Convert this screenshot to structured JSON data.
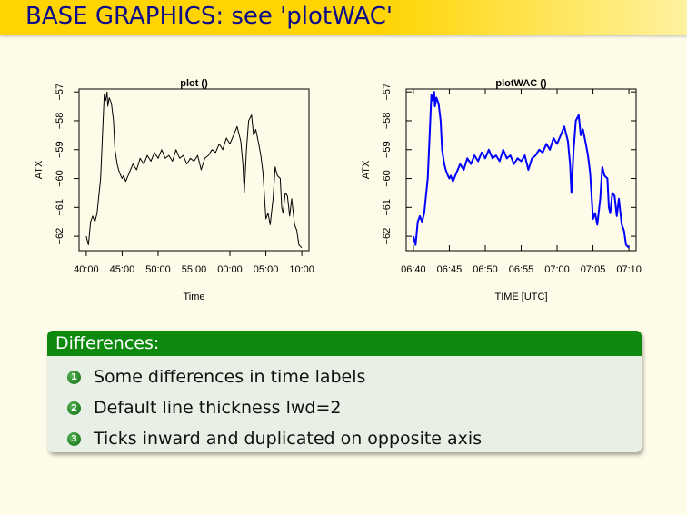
{
  "slide": {
    "title": "BASE GRAPHICS: see 'plotWAC'",
    "colors": {
      "title_bar": "#ffd400",
      "title_text": "#0a0a8a",
      "block_header": "#0d8a0d",
      "block_body": "#e8f0e6"
    }
  },
  "chart_data": [
    {
      "type": "line",
      "title": "plot ()",
      "xlabel": "Time",
      "ylabel": "ATX",
      "xtick_labels": [
        "40:00",
        "45:00",
        "50:00",
        "55:00",
        "00:00",
        "05:00",
        "10:00"
      ],
      "xlim": [
        -1,
        31
      ],
      "ylim": [
        -62.5,
        -56.9
      ],
      "yticks": [
        -57,
        -58,
        -59,
        -60,
        -61,
        -62
      ],
      "line_color": "#000000",
      "line_width": 1,
      "ticks": "outward",
      "series": [
        {
          "x": [
            0,
            0.3,
            0.6,
            0.9,
            1.2,
            1.5,
            2.0,
            2.5,
            2.7,
            2.9,
            3.0,
            3.2,
            3.5,
            3.8,
            4.0,
            4.3,
            4.5,
            4.8,
            5.0,
            5.2,
            5.5,
            6.0,
            6.5,
            7.0,
            7.5,
            8.0,
            8.5,
            9.0,
            9.5,
            10.0,
            10.5,
            11.0,
            11.5,
            12.0,
            12.5,
            13.0,
            13.5,
            14.0,
            14.5,
            15.0,
            15.5,
            16.0,
            16.5,
            17.0,
            17.5,
            18.0,
            18.5,
            19.0,
            19.5,
            20.0,
            20.5,
            21.0,
            21.5,
            21.8,
            22.0,
            22.3,
            22.6,
            23.0,
            23.3,
            23.6,
            24.0,
            24.3,
            24.6,
            25.0,
            25.3,
            25.6,
            26.0,
            26.3,
            26.6,
            27.0,
            27.2,
            27.4,
            27.7,
            28.0,
            28.3,
            28.6,
            29.0,
            29.3,
            29.6,
            30.0
          ],
          "y": [
            -62.0,
            -62.3,
            -61.5,
            -61.3,
            -61.5,
            -61.2,
            -60.0,
            -57.1,
            -57.3,
            -57.0,
            -57.5,
            -57.2,
            -57.4,
            -58.0,
            -59.0,
            -59.5,
            -59.7,
            -59.9,
            -60.0,
            -59.9,
            -60.1,
            -59.8,
            -59.5,
            -59.7,
            -59.3,
            -59.5,
            -59.2,
            -59.4,
            -59.1,
            -59.3,
            -59.0,
            -59.3,
            -59.2,
            -59.4,
            -59.0,
            -59.3,
            -59.2,
            -59.5,
            -59.3,
            -59.4,
            -59.2,
            -59.7,
            -59.3,
            -59.2,
            -59.0,
            -59.1,
            -58.8,
            -59.0,
            -58.6,
            -58.8,
            -58.5,
            -58.2,
            -58.7,
            -59.5,
            -60.5,
            -59.0,
            -58.0,
            -57.8,
            -58.5,
            -58.3,
            -58.8,
            -59.2,
            -59.8,
            -61.4,
            -61.2,
            -61.6,
            -60.7,
            -59.6,
            -59.9,
            -60.0,
            -61.0,
            -61.2,
            -60.5,
            -60.6,
            -61.3,
            -60.7,
            -61.6,
            -61.8,
            -62.3,
            -62.4
          ]
        }
      ]
    },
    {
      "type": "line",
      "title": "plotWAC ()",
      "xlabel": "TIME [UTC]",
      "ylabel": "ATX",
      "xtick_labels": [
        "06:40",
        "06:45",
        "06:50",
        "06:55",
        "07:00",
        "07:05",
        "07:10"
      ],
      "xlim": [
        -1,
        31
      ],
      "ylim": [
        -62.5,
        -56.9
      ],
      "yticks": [
        -57,
        -58,
        -59,
        -60,
        -61,
        -62
      ],
      "line_color": "#0000ff",
      "line_width": 2,
      "ticks": "inward, duplicated on opposite axis",
      "series": [
        {
          "x": [
            0,
            0.3,
            0.6,
            0.9,
            1.2,
            1.5,
            2.0,
            2.5,
            2.7,
            2.9,
            3.0,
            3.2,
            3.5,
            3.8,
            4.0,
            4.3,
            4.5,
            4.8,
            5.0,
            5.2,
            5.5,
            6.0,
            6.5,
            7.0,
            7.5,
            8.0,
            8.5,
            9.0,
            9.5,
            10.0,
            10.5,
            11.0,
            11.5,
            12.0,
            12.5,
            13.0,
            13.5,
            14.0,
            14.5,
            15.0,
            15.5,
            16.0,
            16.5,
            17.0,
            17.5,
            18.0,
            18.5,
            19.0,
            19.5,
            20.0,
            20.5,
            21.0,
            21.5,
            21.8,
            22.0,
            22.3,
            22.6,
            23.0,
            23.3,
            23.6,
            24.0,
            24.3,
            24.6,
            25.0,
            25.3,
            25.6,
            26.0,
            26.3,
            26.6,
            27.0,
            27.2,
            27.4,
            27.7,
            28.0,
            28.3,
            28.6,
            29.0,
            29.3,
            29.6,
            30.0
          ],
          "y": [
            -62.0,
            -62.3,
            -61.5,
            -61.3,
            -61.5,
            -61.2,
            -60.0,
            -57.1,
            -57.3,
            -57.0,
            -57.5,
            -57.2,
            -57.4,
            -58.0,
            -59.0,
            -59.5,
            -59.7,
            -59.9,
            -60.0,
            -59.9,
            -60.1,
            -59.8,
            -59.5,
            -59.7,
            -59.3,
            -59.5,
            -59.2,
            -59.4,
            -59.1,
            -59.3,
            -59.0,
            -59.3,
            -59.2,
            -59.4,
            -59.0,
            -59.3,
            -59.2,
            -59.5,
            -59.3,
            -59.4,
            -59.2,
            -59.7,
            -59.3,
            -59.2,
            -59.0,
            -59.1,
            -58.8,
            -59.0,
            -58.6,
            -58.8,
            -58.5,
            -58.2,
            -58.7,
            -59.5,
            -60.5,
            -59.0,
            -58.0,
            -57.8,
            -58.5,
            -58.3,
            -58.8,
            -59.2,
            -59.8,
            -61.4,
            -61.2,
            -61.6,
            -60.7,
            -59.6,
            -59.9,
            -60.0,
            -61.0,
            -61.2,
            -60.5,
            -60.6,
            -61.3,
            -60.7,
            -61.6,
            -61.8,
            -62.3,
            -62.4
          ]
        }
      ]
    }
  ],
  "differences": {
    "header": "Differences:",
    "items": [
      {
        "number": "1",
        "text": "Some differences in time labels"
      },
      {
        "number": "2",
        "text": "Default line thickness lwd=2"
      },
      {
        "number": "3",
        "text": "Ticks inward and duplicated on opposite axis"
      }
    ]
  }
}
